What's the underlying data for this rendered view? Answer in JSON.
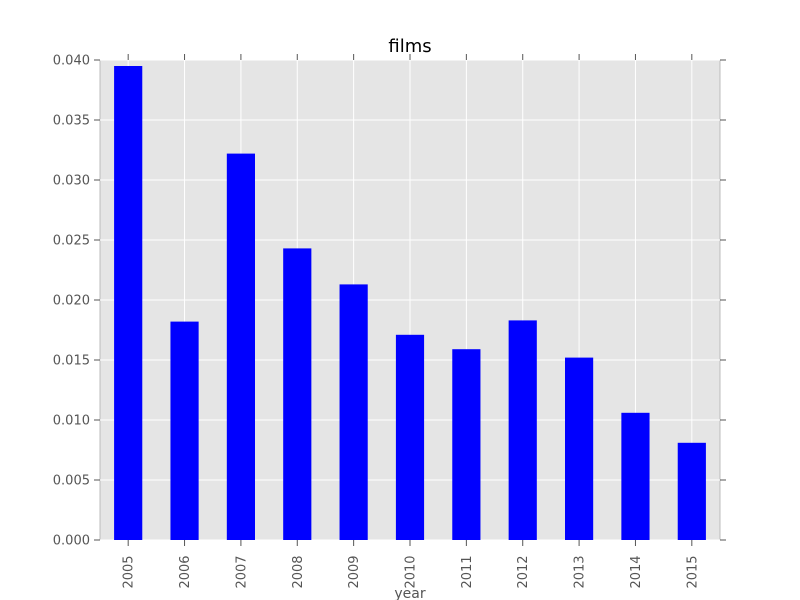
{
  "chart_data": {
    "type": "bar",
    "title": "films",
    "xlabel": "year",
    "ylabel": "",
    "categories": [
      "2005",
      "2006",
      "2007",
      "2008",
      "2009",
      "2010",
      "2011",
      "2012",
      "2013",
      "2014",
      "2015"
    ],
    "values": [
      0.0395,
      0.0182,
      0.0322,
      0.0243,
      0.0213,
      0.0171,
      0.0159,
      0.0183,
      0.0152,
      0.0106,
      0.0081
    ],
    "ylim": [
      0,
      0.04
    ],
    "yticks": [
      "0.000",
      "0.005",
      "0.010",
      "0.015",
      "0.020",
      "0.025",
      "0.030",
      "0.035",
      "0.040"
    ],
    "grid": true,
    "bar_color": "#0000ff",
    "plot_background": "#e5e5e5",
    "grid_color": "#ffffff"
  }
}
